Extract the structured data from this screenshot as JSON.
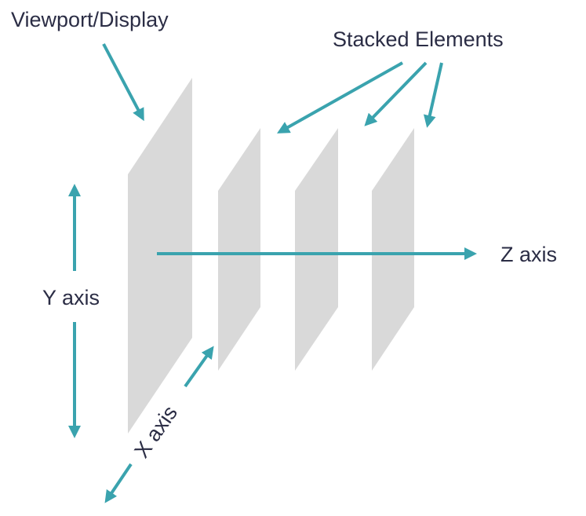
{
  "diagram": {
    "colors": {
      "plane": "#d9d9d9",
      "arrow": "#3aa3ae",
      "text": "#2b2d45"
    },
    "labels": {
      "viewport": "Viewport/Display",
      "stacked": "Stacked Elements",
      "z_axis": "Z axis",
      "y_axis": "Y axis",
      "x_axis": "X axis"
    }
  }
}
